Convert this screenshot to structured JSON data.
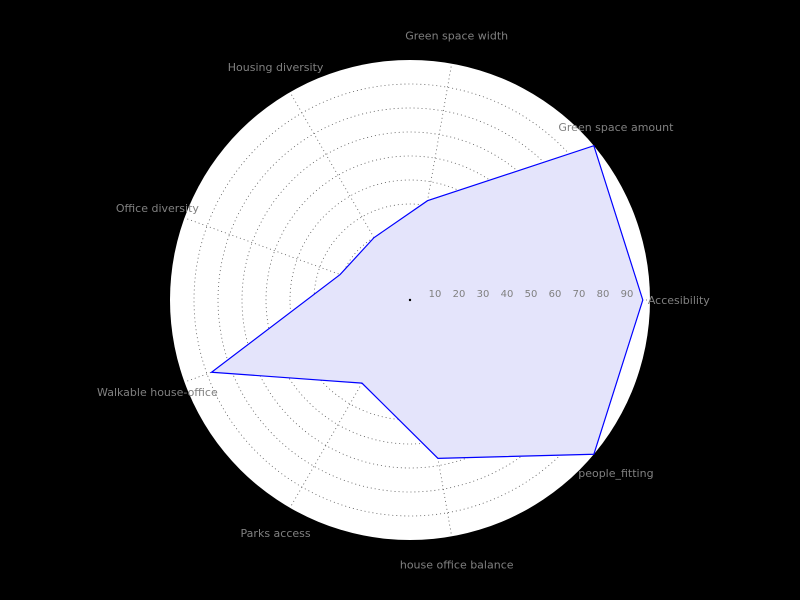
{
  "chart_data": {
    "type": "radar",
    "title": "",
    "axes": [
      "Accesibility",
      "Green space amount",
      "Green space width",
      "Housing diversity",
      "Office diversity",
      "Walkable house-office",
      "Parks access",
      "house office balance",
      "people_fitting"
    ],
    "radial_ticks": [
      10,
      20,
      30,
      40,
      50,
      60,
      70,
      80,
      90
    ],
    "rlim": [
      0,
      100
    ],
    "grid": true,
    "series": [
      {
        "values": [
          97,
          100,
          42,
          30,
          31,
          88,
          40,
          67,
          100
        ],
        "color": "#0000ff",
        "fill": "#e4e4fb"
      }
    ],
    "colors": {
      "background": "#000000",
      "plot_face": "#ffffff",
      "grid": "#555555",
      "label": "#808080"
    }
  }
}
